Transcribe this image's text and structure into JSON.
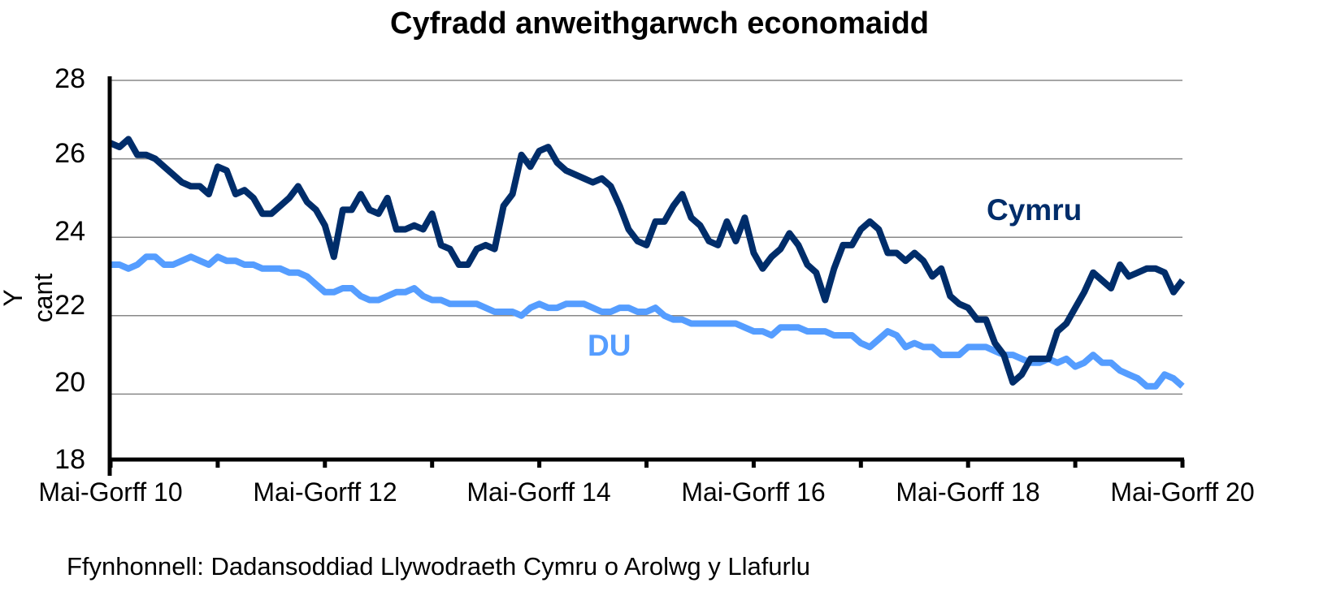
{
  "chart_data": {
    "type": "line",
    "title": "Cyfradd anweithgarwch economaidd",
    "xlabel": "",
    "ylabel": "Y cant",
    "ylim": [
      18,
      28
    ],
    "yticks": [
      "28",
      "26",
      "24",
      "22",
      "20",
      "18"
    ],
    "xticks": [
      "Mai-Gorff 10",
      "Mai-Gorff 12",
      "Mai-Gorff 14",
      "Mai-Gorff 16",
      "Mai-Gorff 18",
      "Mai-Gorff 20"
    ],
    "grid": true,
    "legend_position": "inline labels",
    "series": [
      {
        "name": "Cymru",
        "color": "#002d6a",
        "values": [
          26.4,
          26.3,
          26.5,
          26.1,
          26.1,
          26.0,
          25.8,
          25.6,
          25.4,
          25.3,
          25.3,
          25.1,
          25.8,
          25.7,
          25.1,
          25.2,
          25.0,
          24.6,
          24.6,
          24.8,
          25.0,
          25.3,
          24.9,
          24.7,
          24.3,
          23.5,
          24.7,
          24.7,
          25.1,
          24.7,
          24.6,
          25.0,
          24.2,
          24.2,
          24.3,
          24.2,
          24.6,
          23.8,
          23.7,
          23.3,
          23.3,
          23.7,
          23.8,
          23.7,
          24.8,
          25.1,
          26.1,
          25.8,
          26.2,
          26.3,
          25.9,
          25.7,
          25.6,
          25.5,
          25.4,
          25.5,
          25.3,
          24.8,
          24.2,
          23.9,
          23.8,
          24.4,
          24.4,
          24.8,
          25.1,
          24.5,
          24.3,
          23.9,
          23.8,
          24.4,
          23.9,
          24.5,
          23.6,
          23.2,
          23.5,
          23.7,
          24.1,
          23.8,
          23.3,
          23.1,
          22.4,
          23.2,
          23.8,
          23.8,
          24.2,
          24.4,
          24.2,
          23.6,
          23.6,
          23.4,
          23.6,
          23.4,
          23.0,
          23.2,
          22.5,
          22.3,
          22.2,
          21.9,
          21.9,
          21.3,
          21.0,
          20.3,
          20.5,
          20.9,
          20.9,
          20.9,
          21.6,
          21.8,
          22.2,
          22.6,
          23.1,
          22.9,
          22.7,
          23.3,
          23.0,
          23.1,
          23.2,
          23.2,
          23.1,
          22.6,
          22.9
        ]
      },
      {
        "name": "DU",
        "color": "#559dff",
        "values": [
          23.3,
          23.3,
          23.2,
          23.3,
          23.5,
          23.5,
          23.3,
          23.3,
          23.4,
          23.5,
          23.4,
          23.3,
          23.5,
          23.4,
          23.4,
          23.3,
          23.3,
          23.2,
          23.2,
          23.2,
          23.1,
          23.1,
          23.0,
          22.8,
          22.6,
          22.6,
          22.7,
          22.7,
          22.5,
          22.4,
          22.4,
          22.5,
          22.6,
          22.6,
          22.7,
          22.5,
          22.4,
          22.4,
          22.3,
          22.3,
          22.3,
          22.3,
          22.2,
          22.1,
          22.1,
          22.1,
          22.0,
          22.2,
          22.3,
          22.2,
          22.2,
          22.3,
          22.3,
          22.3,
          22.2,
          22.1,
          22.1,
          22.2,
          22.2,
          22.1,
          22.1,
          22.2,
          22.0,
          21.9,
          21.9,
          21.8,
          21.8,
          21.8,
          21.8,
          21.8,
          21.8,
          21.7,
          21.6,
          21.6,
          21.5,
          21.7,
          21.7,
          21.7,
          21.6,
          21.6,
          21.6,
          21.5,
          21.5,
          21.5,
          21.3,
          21.2,
          21.4,
          21.6,
          21.5,
          21.2,
          21.3,
          21.2,
          21.2,
          21.0,
          21.0,
          21.0,
          21.2,
          21.2,
          21.2,
          21.1,
          21.0,
          21.0,
          20.9,
          20.8,
          20.8,
          20.9,
          20.8,
          20.9,
          20.7,
          20.8,
          21.0,
          20.8,
          20.8,
          20.6,
          20.5,
          20.4,
          20.2,
          20.2,
          20.5,
          20.4,
          20.2
        ]
      }
    ],
    "annotations": [
      "Cymru",
      "DU"
    ]
  },
  "labels": {
    "cymru": "Cymru",
    "du": "DU"
  },
  "source": "Ffynhonnell: Dadansoddiad Llywodraeth Cymru o Arolwg y Llafurlu"
}
